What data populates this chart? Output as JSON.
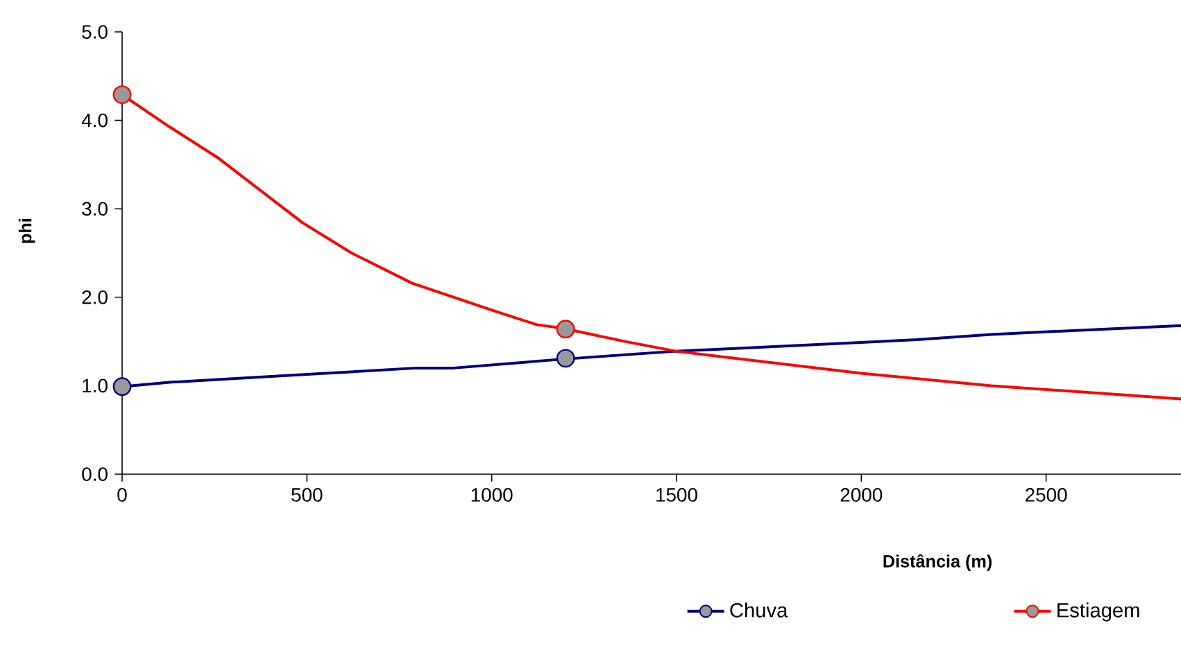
{
  "chart_data": {
    "type": "line",
    "xlabel": "Distância (m)",
    "ylabel": "phi",
    "xlim": [
      0,
      2865
    ],
    "xticks": [
      0,
      500,
      1000,
      1500,
      2000,
      2500
    ],
    "ylim": [
      0,
      5
    ],
    "yticks": [
      {
        "value": 0,
        "label": "0.0"
      },
      {
        "value": 1,
        "label": "1.0"
      },
      {
        "value": 2,
        "label": "2.0"
      },
      {
        "value": 3,
        "label": "3.0"
      },
      {
        "value": 4,
        "label": "4.0"
      },
      {
        "value": 5,
        "label": "5.0"
      }
    ],
    "grid": false,
    "legend": "bottom right",
    "series": [
      {
        "name": "Chuva",
        "color": "#000080",
        "x": [
          0,
          133,
          509,
          797,
          897,
          1192,
          1499,
          2150,
          2351,
          2865
        ],
        "values": [
          0.99,
          1.04,
          1.13,
          1.2,
          1.2,
          1.3,
          1.39,
          1.52,
          1.58,
          1.68
        ]
      },
      {
        "name": "Estiagem",
        "color": "#ff0000",
        "x": [
          0,
          127,
          258,
          489,
          621,
          784,
          897,
          1010,
          1122,
          1192,
          1361,
          1498,
          2000,
          2351,
          2865
        ],
        "values": [
          4.29,
          3.93,
          3.58,
          2.84,
          2.5,
          2.16,
          2.0,
          1.84,
          1.69,
          1.65,
          1.5,
          1.39,
          1.14,
          1.0,
          0.85
        ]
      },
      {
        "type": "scatter",
        "marker": "circle",
        "color": "#000080",
        "x": [
          0,
          1200
        ],
        "values": [
          0.99,
          1.31
        ]
      },
      {
        "type": "scatter",
        "marker": "circle",
        "color": "#ff0000",
        "x": [
          0,
          1200
        ],
        "values": [
          4.29,
          1.64
        ]
      }
    ]
  }
}
